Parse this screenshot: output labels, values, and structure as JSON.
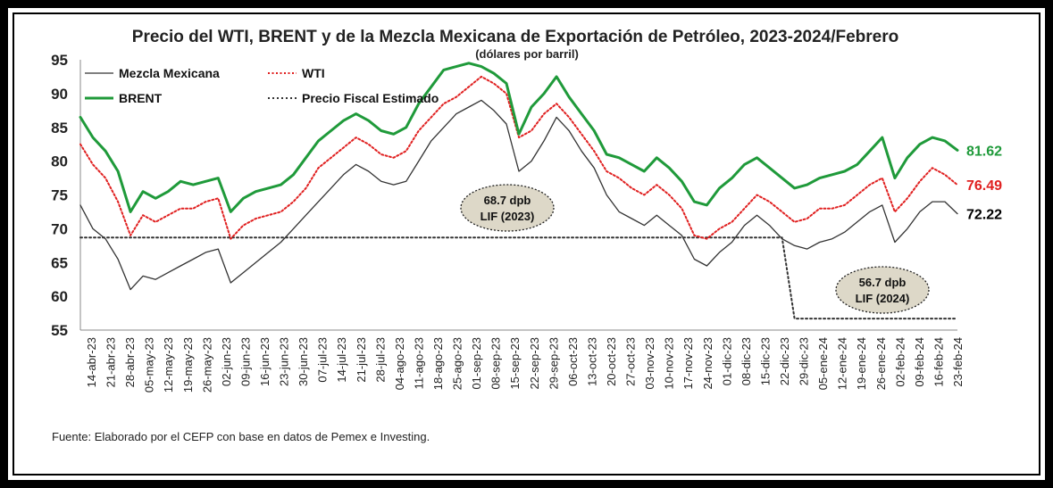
{
  "chart_data": {
    "type": "line",
    "title": "Precio del WTI, BRENT y de la Mezcla Mexicana de Exportación de Petróleo, 2023-2024/Febrero",
    "subtitle": "(dólares por barril)",
    "xlabel": "",
    "ylabel": "",
    "ylim": [
      55,
      95
    ],
    "yticks": [
      "95",
      "90",
      "85",
      "80",
      "75",
      "70",
      "65",
      "60",
      "55"
    ],
    "x_tick_labels": [
      "14-abr-23",
      "21-abr-23",
      "28-abr-23",
      "05-may-23",
      "12-may-23",
      "19-may-23",
      "26-may-23",
      "02-jun-23",
      "09-jun-23",
      "16-jun-23",
      "23-jun-23",
      "30-jun-23",
      "07-jul-23",
      "14-jul-23",
      "21-jul-23",
      "28-jul-23",
      "04-ago-23",
      "11-ago-23",
      "18-ago-23",
      "25-ago-23",
      "01-sep-23",
      "08-sep-23",
      "15-sep-23",
      "22-sep-23",
      "29-sep-23",
      "06-oct-23",
      "13-oct-23",
      "20-oct-23",
      "27-oct-23",
      "03-nov-23",
      "10-nov-23",
      "17-nov-23",
      "24-nov-23",
      "01-dic-23",
      "08-dic-23",
      "15-dic-23",
      "22-dic-23",
      "29-dic-23",
      "05-ene-24",
      "12-ene-24",
      "19-ene-24",
      "26-ene-24",
      "02-feb-24",
      "09-feb-24",
      "16-feb-24",
      "23-feb-24"
    ],
    "legend": {
      "placement": "top-left"
    },
    "grid": false,
    "series": [
      {
        "name": "Mezcla Mexicana",
        "color": "#333333",
        "style": "solid",
        "values": [
          73.5,
          70.0,
          68.5,
          65.5,
          61.0,
          63.0,
          62.5,
          63.5,
          64.5,
          65.5,
          66.5,
          67.0,
          62.0,
          63.5,
          65.0,
          66.5,
          68.0,
          70.0,
          72.0,
          74.0,
          76.0,
          78.0,
          79.5,
          78.5,
          77.0,
          76.5,
          77.0,
          80.0,
          83.0,
          85.0,
          87.0,
          88.0,
          89.0,
          87.5,
          85.5,
          78.5,
          80.0,
          83.0,
          86.5,
          84.5,
          81.5,
          79.0,
          75.0,
          72.5,
          71.5,
          70.5,
          72.0,
          70.5,
          69.0,
          65.5,
          64.5,
          66.5,
          68.0,
          70.5,
          72.0,
          70.5,
          68.5,
          67.5,
          67.0,
          68.0,
          68.5,
          69.5,
          71.0,
          72.5,
          73.5,
          68.0,
          70.0,
          72.5,
          74.0,
          74.0,
          72.22
        ]
      },
      {
        "name": "WTI",
        "color": "#e02020",
        "style": "dotted",
        "values": [
          82.5,
          79.5,
          77.5,
          74.0,
          69.0,
          72.0,
          71.0,
          72.0,
          73.0,
          73.0,
          74.0,
          74.5,
          68.5,
          70.5,
          71.5,
          72.0,
          72.5,
          74.0,
          76.0,
          79.0,
          80.5,
          82.0,
          83.5,
          82.5,
          81.0,
          80.5,
          81.5,
          84.5,
          86.5,
          88.5,
          89.5,
          91.0,
          92.5,
          91.5,
          90.0,
          83.5,
          84.5,
          87.0,
          88.5,
          86.5,
          84.0,
          81.5,
          78.5,
          77.5,
          76.0,
          75.0,
          76.5,
          75.0,
          73.0,
          69.0,
          68.5,
          70.0,
          71.0,
          73.0,
          75.0,
          74.0,
          72.5,
          71.0,
          71.5,
          73.0,
          73.0,
          73.5,
          75.0,
          76.5,
          77.5,
          72.5,
          74.5,
          77.0,
          79.0,
          78.0,
          76.49
        ]
      },
      {
        "name": "BRENT",
        "color": "#1f9a3a",
        "style": "solid",
        "values": [
          86.5,
          83.5,
          81.5,
          78.5,
          72.5,
          75.5,
          74.5,
          75.5,
          77.0,
          76.5,
          77.0,
          77.5,
          72.5,
          74.5,
          75.5,
          76.0,
          76.5,
          78.0,
          80.5,
          83.0,
          84.5,
          86.0,
          87.0,
          86.0,
          84.5,
          84.0,
          85.0,
          88.5,
          91.0,
          93.5,
          94.0,
          94.5,
          94.0,
          93.0,
          91.5,
          84.0,
          88.0,
          90.0,
          92.5,
          89.5,
          87.0,
          84.5,
          81.0,
          80.5,
          79.5,
          78.5,
          80.5,
          79.0,
          77.0,
          74.0,
          73.5,
          76.0,
          77.5,
          79.5,
          80.5,
          79.0,
          77.5,
          76.0,
          76.5,
          77.5,
          78.0,
          78.5,
          79.5,
          81.5,
          83.5,
          77.5,
          80.5,
          82.5,
          83.5,
          83.0,
          81.62
        ]
      },
      {
        "name": "Precio Fiscal Estimado",
        "color": "#333333",
        "style": "dotted",
        "values": [
          68.7,
          68.7,
          68.7,
          68.7,
          68.7,
          68.7,
          68.7,
          68.7,
          68.7,
          68.7,
          68.7,
          68.7,
          68.7,
          68.7,
          68.7,
          68.7,
          68.7,
          68.7,
          68.7,
          68.7,
          68.7,
          68.7,
          68.7,
          68.7,
          68.7,
          68.7,
          68.7,
          68.7,
          68.7,
          68.7,
          68.7,
          68.7,
          68.7,
          68.7,
          68.7,
          68.7,
          68.7,
          68.7,
          68.7,
          68.7,
          68.7,
          68.7,
          68.7,
          68.7,
          68.7,
          68.7,
          68.7,
          68.7,
          68.7,
          68.7,
          68.7,
          68.7,
          68.7,
          68.7,
          68.7,
          68.7,
          68.7,
          56.7,
          56.7,
          56.7,
          56.7,
          56.7,
          56.7,
          56.7,
          56.7,
          56.7,
          56.7,
          56.7,
          56.7,
          56.7,
          56.7
        ]
      }
    ],
    "end_labels": [
      {
        "series": "BRENT",
        "text": "81.62",
        "color": "#1f9a3a"
      },
      {
        "series": "WTI",
        "text": "76.49",
        "color": "#e02020"
      },
      {
        "series": "Mezcla Mexicana",
        "text": "72.22",
        "color": "#000000"
      }
    ],
    "annotations": [
      {
        "line1": "68.7 dpb",
        "line2": "LIF (2023)",
        "value": 68.7
      },
      {
        "line1": "56.7 dpb",
        "line2": "LIF (2024)",
        "value": 56.7
      }
    ],
    "source": "Fuente: Elaborado por el CEFP con base en datos de Pemex e Investing."
  }
}
